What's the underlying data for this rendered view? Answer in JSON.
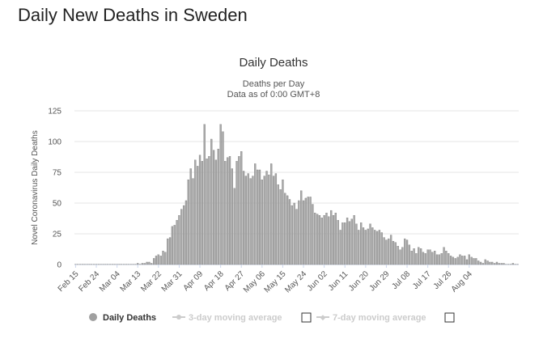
{
  "page": {
    "heading": "Daily New Deaths in Sweden"
  },
  "legend": {
    "daily_label": "Daily Deaths",
    "ma3_label": "3-day moving average",
    "ma7_label": "7-day moving average"
  },
  "colors": {
    "bar": "#a9a9a9",
    "bar_stroke": "#6f6f6f",
    "grid": "#e6e6e6",
    "legend_off": "#cccccc"
  },
  "chart_data": {
    "type": "bar",
    "title": "Daily Deaths",
    "subtitle_line1": "Deaths per Day",
    "subtitle_line2": "Data as of 0:00 GMT+8",
    "ylabel": "Novel Coronavirus Daily Deaths",
    "xlabel": "",
    "ylim": [
      0,
      125
    ],
    "yticks": [
      0,
      25,
      50,
      75,
      100,
      125
    ],
    "xtick_labels": [
      "Feb 15",
      "Feb 24",
      "Mar 04",
      "Mar 13",
      "Mar 22",
      "Mar 31",
      "Apr 09",
      "Apr 18",
      "Apr 27",
      "May 06",
      "May 15",
      "May 24",
      "Jun 02",
      "Jun 11",
      "Jun 20",
      "Jun 29",
      "Jul 08",
      "Jul 17",
      "Jul 26",
      "Aug 04"
    ],
    "start_date": "Feb 15",
    "values": [
      0,
      0,
      0,
      0,
      0,
      0,
      0,
      0,
      0,
      0,
      0,
      0,
      0,
      0,
      0,
      0,
      0,
      0,
      0,
      0,
      0,
      0,
      0,
      0,
      0,
      0,
      0,
      1,
      0,
      1,
      1,
      2,
      2,
      1,
      5,
      7,
      8,
      7,
      11,
      10,
      21,
      22,
      31,
      32,
      36,
      40,
      45,
      48,
      52,
      69,
      78,
      70,
      85,
      80,
      89,
      84,
      114,
      86,
      88,
      102,
      93,
      85,
      94,
      114,
      108,
      84,
      87,
      88,
      78,
      62,
      84,
      88,
      92,
      76,
      72,
      74,
      70,
      72,
      82,
      77,
      77,
      69,
      72,
      76,
      73,
      82,
      72,
      74,
      65,
      61,
      69,
      58,
      56,
      53,
      48,
      50,
      45,
      52,
      60,
      52,
      54,
      55,
      55,
      49,
      42,
      41,
      40,
      38,
      40,
      42,
      39,
      44,
      40,
      42,
      36,
      28,
      34,
      34,
      38,
      35,
      37,
      40,
      33,
      28,
      34,
      30,
      28,
      29,
      33,
      30,
      28,
      27,
      28,
      26,
      22,
      20,
      21,
      24,
      19,
      18,
      15,
      12,
      14,
      21,
      20,
      16,
      11,
      13,
      9,
      14,
      13,
      10,
      9,
      12,
      12,
      10,
      11,
      8,
      8,
      9,
      14,
      11,
      9,
      7,
      6,
      5,
      6,
      8,
      7,
      7,
      4,
      8,
      6,
      5,
      5,
      3,
      2,
      1,
      4,
      3,
      2,
      2,
      1,
      2,
      1,
      1,
      1,
      0,
      0,
      0,
      1,
      0,
      0
    ]
  }
}
